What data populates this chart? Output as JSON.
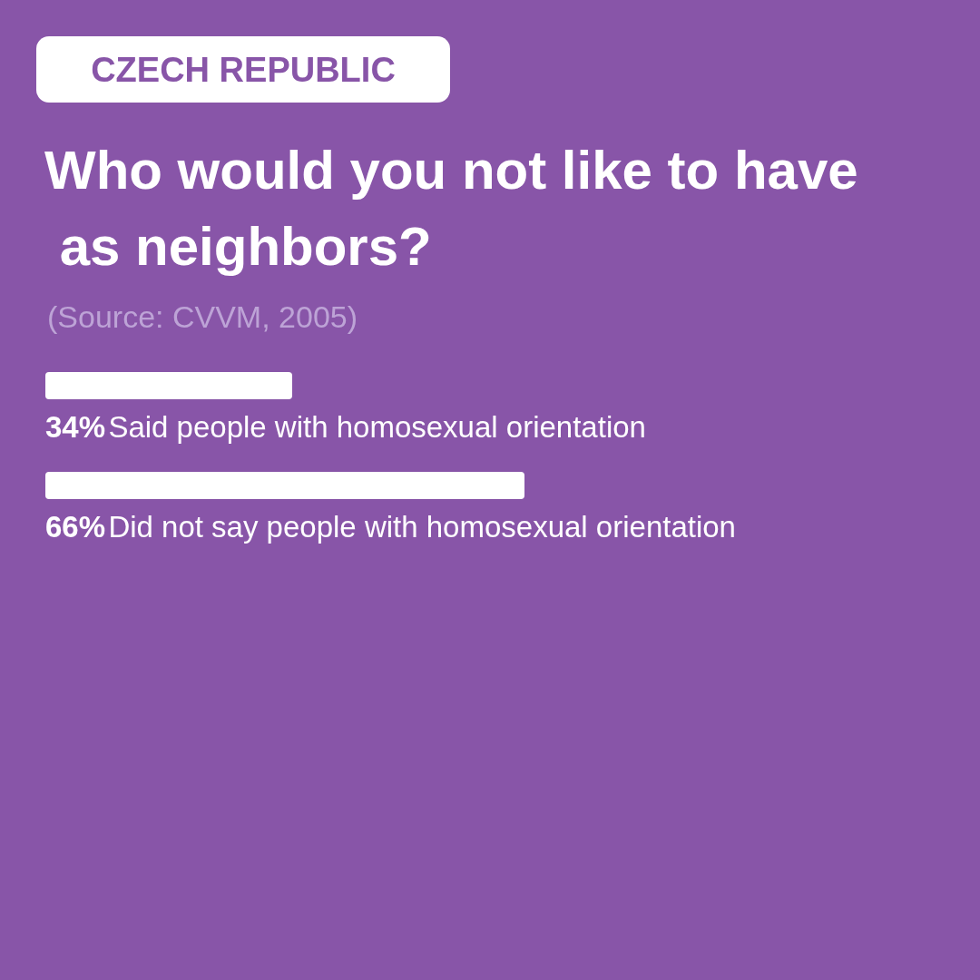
{
  "chart_data": {
    "type": "bar",
    "orientation": "horizontal",
    "title": "Who would you not like to have as neighbors?",
    "annotations": [
      "CZECH REPUBLIC",
      "(Source: CVVM, 2005)"
    ],
    "categories": [
      "Said people with homosexual orientation",
      "Did not say people with homosexual orientation"
    ],
    "values": [
      34,
      66
    ],
    "value_labels": [
      "34%",
      "66%"
    ],
    "color": "#ffffff"
  }
}
